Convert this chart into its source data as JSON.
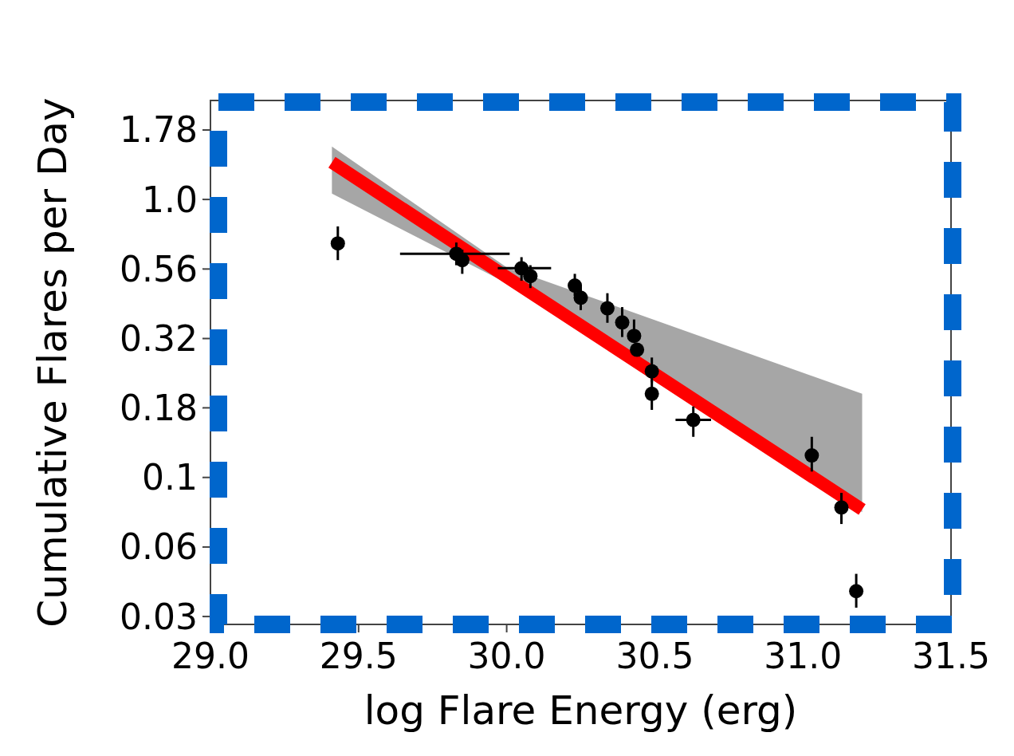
{
  "chart_data": {
    "type": "scatter",
    "xlabel": "log Flare Energy (erg)",
    "ylabel": "Cumulative Flares per Day",
    "log": "y",
    "xlim": [
      29.0,
      31.5
    ],
    "xticks": [
      {
        "value": 29.0,
        "label": "29.0"
      },
      {
        "value": 29.5,
        "label": "29.5"
      },
      {
        "value": 30.0,
        "label": "30.0"
      },
      {
        "value": 30.5,
        "label": "30.5"
      },
      {
        "value": 31.0,
        "label": "31.0"
      },
      {
        "value": 31.5,
        "label": "31.5"
      }
    ],
    "ylim": [
      0.0296,
      2.27
    ],
    "yticks": [
      {
        "value": 0.0316,
        "label": "0.03"
      },
      {
        "value": 0.0562,
        "label": "0.06"
      },
      {
        "value": 0.1,
        "label": "0.1"
      },
      {
        "value": 0.178,
        "label": "0.18"
      },
      {
        "value": 0.316,
        "label": "0.32"
      },
      {
        "value": 0.562,
        "label": "0.56"
      },
      {
        "value": 1.0,
        "label": "1.0"
      },
      {
        "value": 1.778,
        "label": "1.78"
      }
    ],
    "series": [
      {
        "type": "line",
        "color": "#ff0000",
        "x": [
          29.41,
          30.0,
          31.2
        ],
        "values": [
          1.36,
          0.526,
          0.0767
        ],
        "lower": [
          1.05,
          0.5,
          0.075
        ],
        "upper": [
          1.55,
          0.57,
          0.2
        ]
      },
      {
        "marker": "circle",
        "color": "#000000",
        "x": [
          29.43,
          29.83,
          29.85,
          30.05,
          30.08,
          30.23,
          30.25,
          30.34,
          30.39,
          30.43,
          30.44,
          30.49,
          30.49,
          30.63,
          31.03,
          31.13,
          31.18
        ],
        "values": [
          0.695,
          0.638,
          0.605,
          0.566,
          0.53,
          0.49,
          0.443,
          0.406,
          0.361,
          0.323,
          0.288,
          0.241,
          0.2,
          0.161,
          0.12,
          0.078,
          0.039
        ],
        "errors": [
          [
            0.605,
            0.8
          ],
          [
            0.58,
            0.7
          ],
          [
            0.54,
            0.66
          ],
          [
            0.51,
            0.62
          ],
          [
            0.48,
            0.58
          ],
          [
            0.45,
            0.54
          ],
          [
            0.4,
            0.49
          ],
          [
            0.36,
            0.46
          ],
          [
            0.32,
            0.41
          ],
          [
            0.323,
            0.37
          ],
          null,
          [
            0.22,
            0.27
          ],
          [
            0.175,
            0.225
          ],
          [
            0.14,
            0.18
          ],
          [
            0.105,
            0.14
          ],
          [
            0.068,
            0.088
          ],
          [
            0.034,
            0.045
          ]
        ],
        "xerrors": [
          null,
          [
            29.64,
            30.01
          ],
          null,
          [
            29.97,
            30.15
          ],
          null,
          null,
          null,
          null,
          null,
          null,
          null,
          null,
          null,
          [
            30.57,
            30.69
          ],
          null,
          null,
          null
        ]
      }
    ]
  }
}
